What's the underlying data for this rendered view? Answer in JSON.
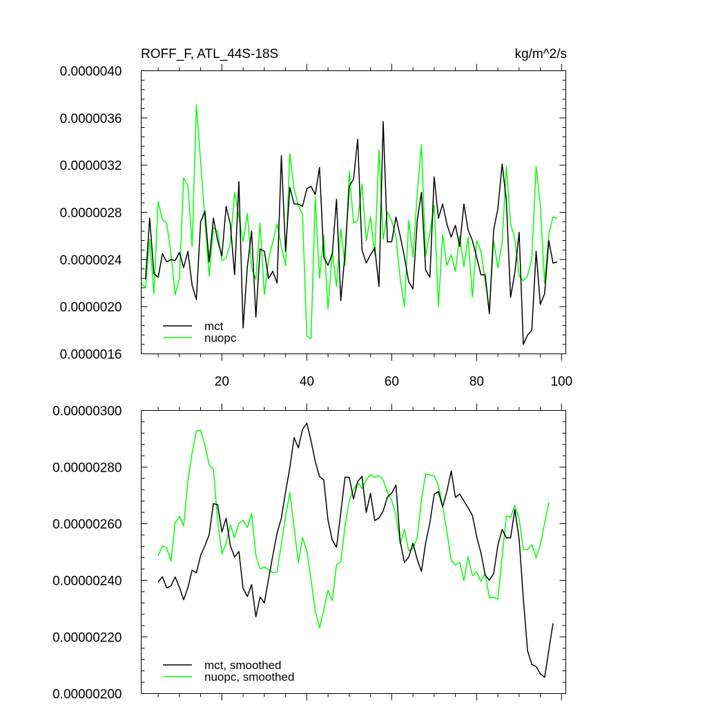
{
  "chart_data": [
    {
      "type": "line",
      "title": "ROFF_F, ATL_44S-18S",
      "units": "kg/m^2/s",
      "xlim": [
        1,
        101
      ],
      "ylim": [
        1.6e-06,
        4e-06
      ],
      "xticks": [
        20,
        40,
        60,
        80,
        100
      ],
      "xtick_labels": [
        "20",
        "40",
        "60",
        "80",
        "100"
      ],
      "yticks": [
        1.6e-06,
        2e-06,
        2.4e-06,
        2.8e-06,
        3.2e-06,
        3.6e-06,
        4e-06
      ],
      "ytick_labels": [
        "0.0000016",
        "0.0000020",
        "0.0000024",
        "0.0000028",
        "0.0000032",
        "0.0000036",
        "0.0000040"
      ],
      "legend_position": "bottom-left",
      "series": [
        {
          "name": "mct",
          "color": "#000000",
          "x_start": 2,
          "values": [
            2.23,
            2.75,
            2.28,
            2.25,
            2.45,
            2.38,
            2.4,
            2.39,
            2.46,
            2.33,
            2.47,
            2.18,
            2.06,
            2.72,
            2.81,
            2.38,
            2.75,
            2.56,
            2.43,
            2.85,
            2.7,
            2.27,
            3.06,
            1.82,
            2.34,
            2.64,
            1.91,
            2.49,
            2.47,
            2.24,
            2.3,
            2.2,
            3.28,
            2.47,
            3.01,
            2.87,
            2.87,
            2.85,
            3.0,
            3.02,
            2.95,
            3.18,
            2.42,
            2.35,
            2.45,
            2.91,
            2.05,
            2.45,
            3.02,
            3.08,
            3.42,
            2.48,
            2.37,
            2.44,
            2.5,
            2.17,
            3.57,
            2.55,
            2.55,
            2.76,
            2.6,
            2.42,
            2.21,
            2.15,
            2.73,
            2.97,
            2.31,
            2.25,
            3.1,
            2.75,
            2.87,
            2.7,
            2.59,
            2.69,
            2.51,
            2.87,
            2.65,
            2.56,
            2.42,
            2.27,
            2.27,
            1.94,
            2.65,
            2.83,
            3.21,
            2.9,
            2.08,
            2.29,
            2.63,
            1.68,
            1.76,
            1.8,
            2.47,
            2.02,
            2.11,
            2.56,
            2.37,
            2.38
          ]
        },
        {
          "name": "nuopc",
          "color": "#00ff00",
          "x_start": 1,
          "values": [
            2.2,
            2.16,
            2.57,
            2.11,
            2.89,
            2.74,
            2.71,
            2.45,
            2.1,
            2.24,
            3.09,
            3.03,
            2.51,
            3.71,
            3.23,
            2.73,
            2.26,
            2.67,
            2.64,
            2.39,
            2.41,
            2.54,
            2.97,
            2.76,
            2.55,
            2.79,
            2.33,
            2.23,
            2.71,
            2.1,
            2.4,
            2.55,
            2.7,
            2.51,
            2.35,
            3.3,
            3.0,
            2.86,
            2.78,
            1.75,
            1.73,
            2.93,
            2.24,
            2.61,
            1.98,
            2.47,
            2.17,
            2.66,
            2.35,
            3.15,
            2.71,
            2.73,
            3.04,
            2.56,
            2.76,
            2.44,
            3.33,
            2.57,
            2.8,
            2.73,
            2.59,
            2.24,
            2.0,
            2.73,
            2.42,
            2.96,
            3.37,
            2.43,
            2.63,
            2.86,
            2.0,
            2.61,
            2.35,
            2.44,
            2.3,
            2.6,
            2.34,
            2.59,
            2.08,
            2.56,
            2.47,
            2.22,
            1.98,
            2.56,
            2.33,
            2.54,
            3.19,
            2.71,
            2.57,
            2.26,
            2.22,
            2.26,
            2.41,
            3.19,
            2.86,
            2.2,
            2.62,
            2.76,
            2.75
          ]
        }
      ]
    },
    {
      "type": "line",
      "title": "",
      "xlim": [
        1,
        101
      ],
      "ylim": [
        2e-06,
        3e-06
      ],
      "xticks": [
        20,
        40,
        60,
        80,
        100
      ],
      "xtick_labels": [
        "",
        "",
        "",
        "",
        ""
      ],
      "yticks": [
        2e-06,
        2.2e-06,
        2.4e-06,
        2.6e-06,
        2.8e-06,
        3e-06
      ],
      "ytick_labels": [
        "0.00000200",
        "0.00000220",
        "0.00000240",
        "0.00000260",
        "0.00000280",
        "0.00000300"
      ],
      "legend_position": "bottom-left",
      "series": [
        {
          "name": "mct, smoothed",
          "color": "#000000",
          "x_start": 5,
          "values": [
            2.394,
            2.413,
            2.373,
            2.38,
            2.412,
            2.375,
            2.331,
            2.374,
            2.436,
            2.426,
            2.488,
            2.522,
            2.56,
            2.671,
            2.667,
            2.571,
            2.619,
            2.523,
            2.482,
            2.502,
            2.371,
            2.343,
            2.385,
            2.271,
            2.341,
            2.32,
            2.405,
            2.487,
            2.566,
            2.62,
            2.712,
            2.798,
            2.904,
            2.868,
            2.933,
            2.955,
            2.893,
            2.82,
            2.766,
            2.755,
            2.612,
            2.542,
            2.517,
            2.639,
            2.764,
            2.764,
            2.687,
            2.749,
            2.767,
            2.64,
            2.707,
            2.611,
            2.62,
            2.645,
            2.695,
            2.708,
            2.736,
            2.537,
            2.463,
            2.482,
            2.531,
            2.474,
            2.431,
            2.532,
            2.604,
            2.703,
            2.714,
            2.659,
            2.715,
            2.786,
            2.693,
            2.705,
            2.68,
            2.656,
            2.629,
            2.554,
            2.498,
            2.419,
            2.4,
            2.424,
            2.524,
            2.58,
            2.55,
            2.55,
            2.65,
            2.546,
            2.335,
            2.151,
            2.103,
            2.095,
            2.07,
            2.057,
            2.153,
            2.248
          ]
        },
        {
          "name": "nuopc, smoothed",
          "color": "#00ff00",
          "x_start": 5,
          "values": [
            2.487,
            2.522,
            2.514,
            2.467,
            2.604,
            2.626,
            2.592,
            2.75,
            2.851,
            2.927,
            2.93,
            2.879,
            2.808,
            2.792,
            2.61,
            2.494,
            2.53,
            2.596,
            2.551,
            2.602,
            2.612,
            2.586,
            2.636,
            2.488,
            2.44,
            2.447,
            2.438,
            2.426,
            2.43,
            2.528,
            2.627,
            2.71,
            2.587,
            2.462,
            2.551,
            2.503,
            2.403,
            2.291,
            2.232,
            2.295,
            2.365,
            2.328,
            2.455,
            2.465,
            2.592,
            2.681,
            2.721,
            2.746,
            2.724,
            2.755,
            2.774,
            2.763,
            2.77,
            2.754,
            2.711,
            2.682,
            2.63,
            2.529,
            2.58,
            2.504,
            2.513,
            2.551,
            2.684,
            2.776,
            2.772,
            2.77,
            2.735,
            2.663,
            2.572,
            2.471,
            2.454,
            2.464,
            2.399,
            2.483,
            2.417,
            2.429,
            2.396,
            2.424,
            2.338,
            2.34,
            2.333,
            2.484,
            2.627,
            2.623,
            2.664,
            2.617,
            2.508,
            2.508,
            2.526,
            2.48,
            2.525,
            2.602,
            2.675
          ]
        }
      ]
    }
  ]
}
